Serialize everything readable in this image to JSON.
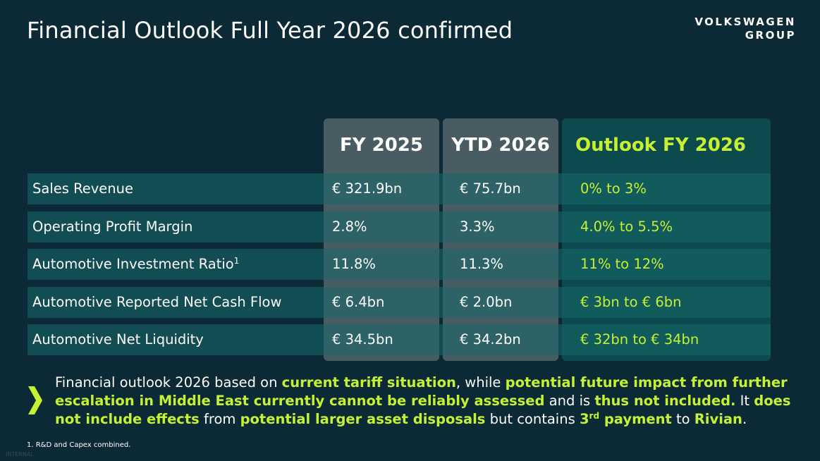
{
  "header": {
    "title": "Financial Outlook Full Year 2026 confirmed",
    "logo_line1": "VOLKSWAGEN",
    "logo_line2": "GROUP"
  },
  "table": {
    "columns": [
      "FY 2025",
      "YTD 2026",
      "Outlook FY 2026"
    ],
    "rows": [
      {
        "label": "Sales Revenue",
        "sup": "",
        "fy25": "€ 321.9bn",
        "ytd": "€ 75.7bn",
        "outlook": "0% to 3%"
      },
      {
        "label": "Operating Profit Margin",
        "sup": "",
        "fy25": "2.8%",
        "ytd": "3.3%",
        "outlook": "4.0% to 5.5%"
      },
      {
        "label": "Automotive Investment Ratio",
        "sup": "1",
        "fy25": "11.8%",
        "ytd": "11.3%",
        "outlook": "11% to 12%"
      },
      {
        "label": "Automotive Reported Net Cash Flow",
        "sup": "",
        "fy25": "€ 6.4bn",
        "ytd": "€ 2.0bn",
        "outlook": "€ 3bn to € 6bn"
      },
      {
        "label": "Automotive Net Liquidity",
        "sup": "",
        "fy25": "€ 34.5bn",
        "ytd": "€ 34.2bn",
        "outlook": "€ 32bn to € 34bn"
      }
    ]
  },
  "note": {
    "p1": "Financial outlook 2026 based on ",
    "h1": "current tariff situation",
    "p2": ", while ",
    "h2": "potential future impact from further escalation in Middle East currently cannot be reliably assessed",
    "p3": " and is ",
    "h3": "thus not included.",
    "p4": " It ",
    "h4": "does not include effects",
    "p5": " from ",
    "h5": "potential larger asset disposals",
    "p6": " but contains ",
    "h6a": "3",
    "h6sup": "rd",
    "h6b": " payment",
    "p7": " to ",
    "h7": "Rivian",
    "p8": "."
  },
  "footnote": "1. R&D and Capex combined.",
  "classification": "INTERNAL",
  "colors": {
    "background": "#0c2a36",
    "accent_green": "#c6f132",
    "column_grey": "#4a5c63",
    "column_teal": "#0d4a4d"
  },
  "icons": {
    "bullet": "chevron-right-icon"
  }
}
